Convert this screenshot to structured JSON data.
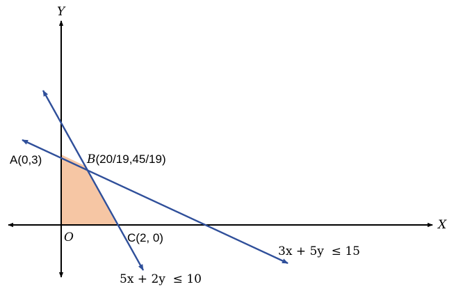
{
  "diagram": {
    "axis_x_label": "X",
    "axis_y_label": "Y",
    "origin_label": "O",
    "point_a_label": "A(0,3)",
    "point_b_prefix": "B",
    "point_b_coords": "(20/19,45/19)",
    "point_c_label": "C(2, 0)",
    "constraint_1": "3x + 5y  ≤ 15",
    "constraint_2": "5x + 2y  ≤ 10",
    "feasible_region_color": "#f6c6a4",
    "constraint_line_color": "#2f4f9a",
    "axis_color": "#000000"
  }
}
